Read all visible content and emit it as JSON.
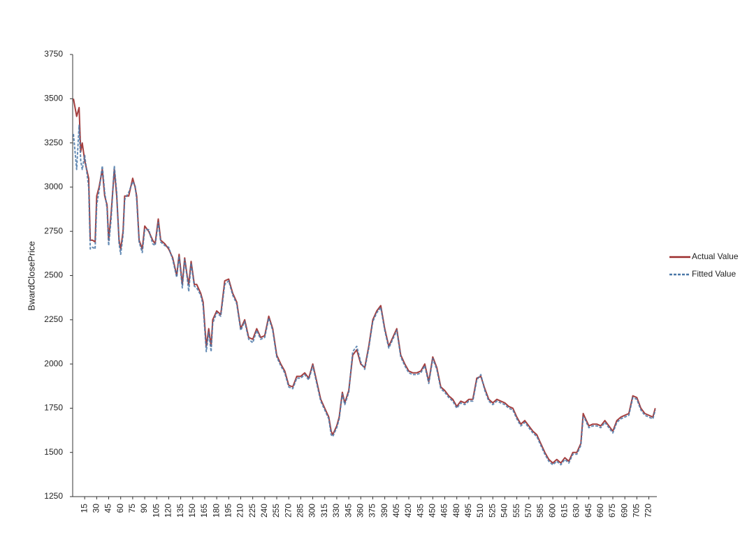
{
  "chart_data": {
    "type": "line",
    "y_label": "BwardClosePrice",
    "x": [
      1,
      5,
      8,
      10,
      12,
      15,
      20,
      22,
      25,
      28,
      30,
      33,
      37,
      40,
      43,
      45,
      48,
      52,
      55,
      58,
      60,
      63,
      65,
      70,
      75,
      78,
      80,
      83,
      87,
      90,
      95,
      100,
      103,
      107,
      110,
      115,
      120,
      125,
      130,
      133,
      137,
      140,
      143,
      145,
      148,
      152,
      155,
      160,
      163,
      167,
      170,
      173,
      175,
      180,
      185,
      190,
      195,
      200,
      205,
      210,
      215,
      220,
      225,
      230,
      235,
      240,
      245,
      250,
      255,
      260,
      265,
      270,
      275,
      280,
      285,
      290,
      295,
      300,
      305,
      310,
      315,
      320,
      323,
      325,
      330,
      333,
      337,
      340,
      345,
      350,
      355,
      360,
      365,
      370,
      375,
      380,
      385,
      390,
      395,
      400,
      405,
      410,
      415,
      420,
      425,
      430,
      435,
      440,
      445,
      450,
      455,
      460,
      465,
      470,
      475,
      480,
      485,
      490,
      495,
      500,
      505,
      510,
      515,
      520,
      525,
      530,
      535,
      540,
      545,
      550,
      555,
      560,
      565,
      570,
      575,
      580,
      585,
      590,
      595,
      600,
      605,
      610,
      615,
      620,
      625,
      630,
      635,
      638,
      640,
      645,
      650,
      655,
      660,
      665,
      670,
      675,
      680,
      685,
      690,
      695,
      700,
      705,
      710,
      715,
      720,
      725,
      728
    ],
    "series": [
      {
        "name": "Actual Value",
        "color": "#9b2a2a",
        "dashed": false,
        "values": [
          3500,
          3400,
          3450,
          3200,
          3250,
          3150,
          3050,
          2700,
          2700,
          2690,
          2950,
          3000,
          3100,
          2950,
          2900,
          2700,
          2850,
          3100,
          2950,
          2700,
          2650,
          2750,
          2950,
          2950,
          3050,
          3000,
          2950,
          2700,
          2650,
          2780,
          2750,
          2700,
          2680,
          2820,
          2700,
          2680,
          2650,
          2600,
          2500,
          2620,
          2450,
          2600,
          2500,
          2450,
          2580,
          2450,
          2450,
          2400,
          2350,
          2100,
          2200,
          2100,
          2250,
          2300,
          2280,
          2470,
          2480,
          2400,
          2350,
          2200,
          2250,
          2150,
          2140,
          2200,
          2150,
          2160,
          2270,
          2200,
          2050,
          2000,
          1960,
          1880,
          1870,
          1930,
          1930,
          1950,
          1920,
          2000,
          1900,
          1800,
          1750,
          1700,
          1620,
          1600,
          1650,
          1700,
          1840,
          1780,
          1850,
          2050,
          2080,
          2000,
          1980,
          2100,
          2250,
          2300,
          2330,
          2200,
          2100,
          2150,
          2200,
          2050,
          2000,
          1960,
          1950,
          1950,
          1960,
          2000,
          1900,
          2040,
          1980,
          1870,
          1850,
          1820,
          1800,
          1760,
          1790,
          1780,
          1800,
          1800,
          1920,
          1930,
          1860,
          1800,
          1780,
          1800,
          1790,
          1780,
          1760,
          1750,
          1700,
          1660,
          1680,
          1650,
          1620,
          1600,
          1550,
          1500,
          1460,
          1440,
          1460,
          1440,
          1470,
          1450,
          1500,
          1500,
          1550,
          1720,
          1700,
          1650,
          1660,
          1660,
          1650,
          1680,
          1650,
          1620,
          1680,
          1700,
          1710,
          1720,
          1820,
          1810,
          1750,
          1720,
          1710,
          1700,
          1750
        ]
      },
      {
        "name": "Fitted Value",
        "color": "#4a78a8",
        "dashed": true,
        "values": [
          3300,
          3100,
          3350,
          3150,
          3100,
          3180,
          3000,
          2650,
          2660,
          2650,
          2900,
          2980,
          3120,
          2970,
          2880,
          2670,
          2820,
          3120,
          2970,
          2680,
          2620,
          2730,
          2930,
          2970,
          3030,
          3010,
          2930,
          2690,
          2630,
          2760,
          2760,
          2680,
          2670,
          2800,
          2690,
          2670,
          2660,
          2590,
          2490,
          2610,
          2430,
          2590,
          2490,
          2410,
          2570,
          2440,
          2430,
          2390,
          2330,
          2070,
          2180,
          2070,
          2230,
          2290,
          2270,
          2450,
          2470,
          2390,
          2340,
          2190,
          2240,
          2140,
          2120,
          2190,
          2140,
          2150,
          2260,
          2190,
          2040,
          1990,
          1950,
          1870,
          1860,
          1920,
          1920,
          1940,
          1910,
          1990,
          1890,
          1790,
          1740,
          1690,
          1600,
          1590,
          1640,
          1690,
          1830,
          1770,
          1840,
          2070,
          2100,
          2010,
          1970,
          2090,
          2240,
          2290,
          2320,
          2190,
          2090,
          2140,
          2190,
          2040,
          1990,
          1950,
          1940,
          1940,
          1950,
          1990,
          1890,
          2030,
          1970,
          1860,
          1840,
          1810,
          1790,
          1750,
          1780,
          1770,
          1790,
          1790,
          1910,
          1940,
          1850,
          1790,
          1770,
          1790,
          1780,
          1770,
          1750,
          1740,
          1690,
          1650,
          1670,
          1640,
          1610,
          1590,
          1540,
          1490,
          1450,
          1430,
          1450,
          1430,
          1460,
          1440,
          1490,
          1490,
          1540,
          1700,
          1690,
          1640,
          1650,
          1650,
          1640,
          1670,
          1640,
          1610,
          1670,
          1690,
          1700,
          1710,
          1810,
          1800,
          1740,
          1710,
          1700,
          1690,
          1740
        ]
      }
    ],
    "xlim": [
      0,
      730
    ],
    "xticks": [
      15,
      30,
      45,
      60,
      75,
      90,
      105,
      120,
      135,
      150,
      165,
      180,
      195,
      210,
      225,
      240,
      255,
      270,
      285,
      300,
      315,
      330,
      345,
      360,
      375,
      390,
      405,
      420,
      435,
      450,
      465,
      480,
      495,
      510,
      525,
      540,
      555,
      570,
      585,
      600,
      615,
      630,
      645,
      660,
      675,
      690,
      705,
      720
    ],
    "ylim": [
      1250,
      3750
    ],
    "yticks": [
      1250,
      1500,
      1750,
      2000,
      2250,
      2500,
      2750,
      3000,
      3250,
      3500,
      3750
    ],
    "legend": "right"
  }
}
